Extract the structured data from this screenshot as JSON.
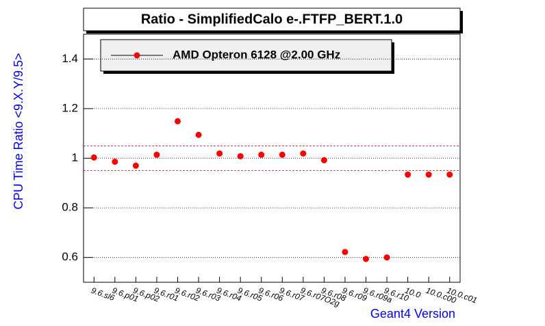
{
  "chart_data": {
    "type": "scatter",
    "title": "Ratio - SimplifiedCalo e-.FTFP_BERT.1.0",
    "x_label": "Geant4 Version",
    "y_label": "CPU Time Ratio <9.X.Y/9.5>",
    "categories": [
      "9.6.sl6",
      "9.6.p01",
      "9.6.p02",
      "9.6.r01",
      "9.6.r02",
      "9.6.r03",
      "9.6.r04",
      "9.6.r05",
      "9.6.r06",
      "9.6.r07",
      "9.6.r07O2g",
      "9.6.r08",
      "9.6.r09",
      "9.6.r09a",
      "9.6.r10",
      "10.0",
      "10.0.c00",
      "10.0.c01"
    ],
    "series": [
      {
        "name": "AMD Opteron 6128 @2.00 GHz",
        "color": "#ff0000",
        "values": [
          1.003,
          0.986,
          0.97,
          1.014,
          1.149,
          1.094,
          1.019,
          1.008,
          1.014,
          1.014,
          1.019,
          0.992,
          0.622,
          0.594,
          0.6,
          0.934,
          0.934,
          0.934
        ]
      }
    ],
    "reference_lines": [
      0.95,
      1.05
    ],
    "ylim": [
      0.5,
      1.5
    ],
    "yticks": [
      0.6,
      0.8,
      1,
      1.2,
      1.4
    ],
    "grid": true
  }
}
